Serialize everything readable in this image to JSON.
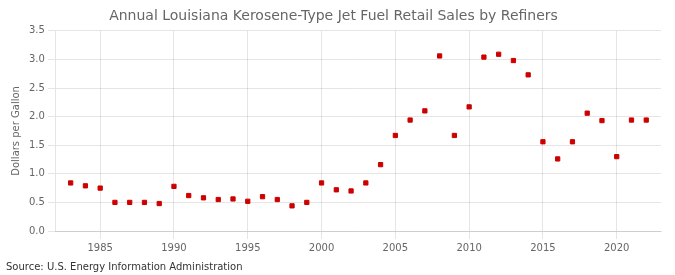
{
  "chart_data": {
    "type": "scatter",
    "title": "Annual Louisiana Kerosene-Type Jet Fuel Retail Sales by Refiners",
    "ylabel": "Dollars per Gallon",
    "annotations": [
      "Source: U.S. Energy Information Administration"
    ],
    "x": [
      1983,
      1984,
      1985,
      1986,
      1987,
      1988,
      1989,
      1990,
      1991,
      1992,
      1993,
      1994,
      1995,
      1996,
      1997,
      1998,
      1999,
      2000,
      2001,
      2002,
      2003,
      2004,
      2005,
      2006,
      2007,
      2008,
      2009,
      2010,
      2011,
      2012,
      2013,
      2014,
      2015,
      2016,
      2017,
      2018,
      2019,
      2020,
      2021,
      2022
    ],
    "values": [
      0.84,
      0.79,
      0.75,
      0.5,
      0.5,
      0.5,
      0.48,
      0.78,
      0.62,
      0.58,
      0.55,
      0.56,
      0.52,
      0.6,
      0.55,
      0.44,
      0.5,
      0.84,
      0.72,
      0.7,
      0.84,
      1.16,
      1.67,
      1.94,
      2.1,
      3.06,
      1.67,
      2.17,
      3.04,
      3.09,
      2.98,
      2.73,
      1.56,
      1.26,
      1.56,
      2.06,
      1.93,
      1.3,
      1.94,
      1.94
    ],
    "color": "#cc0000",
    "marker": "square",
    "xlim": [
      1982,
      2023
    ],
    "xticks": [
      1985,
      1990,
      1995,
      2000,
      2005,
      2010,
      2015,
      2020
    ],
    "ylim": [
      0.0,
      3.5
    ],
    "yticks": [
      {
        "value": 0,
        "label": "0.0"
      },
      0.5,
      {
        "value": 1,
        "label": "1.0"
      },
      1.5,
      {
        "value": 2,
        "label": "2.0"
      },
      2.5,
      {
        "value": 3,
        "label": "3.0"
      },
      3.5
    ],
    "grid": true
  }
}
